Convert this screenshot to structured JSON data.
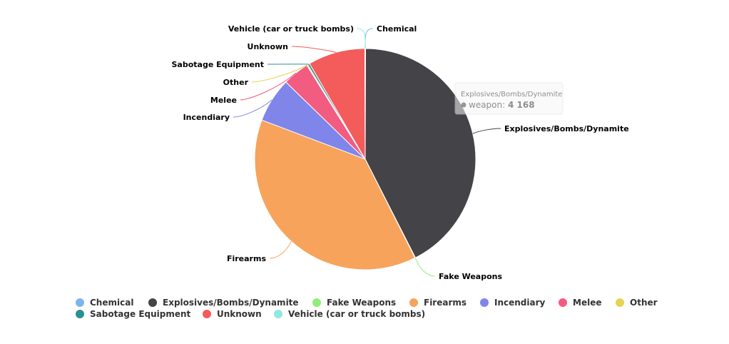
{
  "chart_data": {
    "type": "pie",
    "title": "",
    "categories": [
      "Chemical",
      "Explosives/Bombs/Dynamite",
      "Fake Weapons",
      "Firearms",
      "Incendiary",
      "Melee",
      "Other",
      "Sabotage Equipment",
      "Unknown",
      "Vehicle (car or truck bombs)"
    ],
    "series": [
      {
        "values": [
          5,
          4168,
          5,
          3750,
          640,
          380,
          15,
          30,
          820,
          5
        ],
        "colors": [
          "#7cb5ec",
          "#434348",
          "#90ed7d",
          "#f7a35c",
          "#8085e9",
          "#f15c80",
          "#e4d354",
          "#2b908f",
          "#f45b5b",
          "#91e8e1"
        ]
      }
    ],
    "legend": {
      "position": "bottom"
    },
    "tooltip": {
      "title": "Explosives/Bombs/Dynamite",
      "series_label": "weapon",
      "value": "4 168",
      "color": "#434348"
    }
  }
}
